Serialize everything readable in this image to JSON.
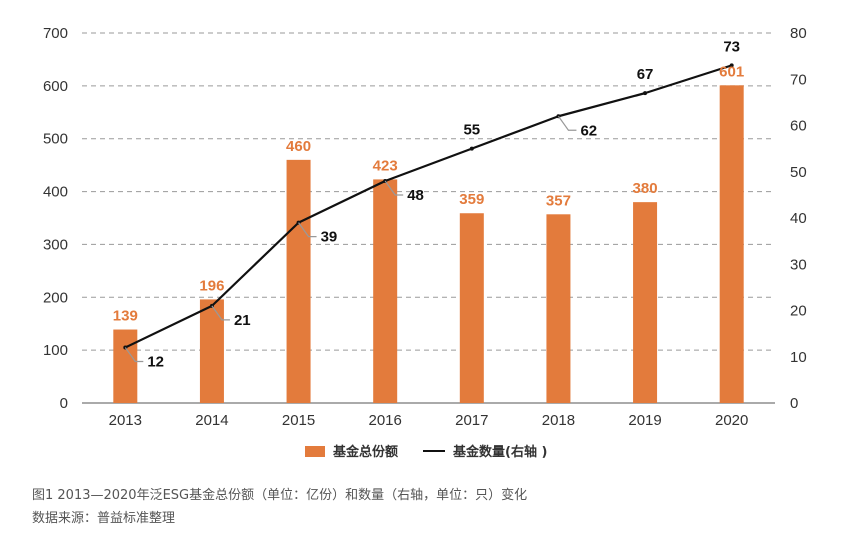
{
  "chart_data": {
    "type": "bar+line",
    "categories": [
      "2013",
      "2014",
      "2015",
      "2016",
      "2017",
      "2018",
      "2019",
      "2020"
    ],
    "series": [
      {
        "name": "基金总份额",
        "type": "bar",
        "axis": "left",
        "color": "#E37B3C",
        "values": [
          139,
          196,
          460,
          423,
          359,
          357,
          380,
          601
        ]
      },
      {
        "name": "基金数量(右轴 )",
        "type": "line",
        "axis": "right",
        "color": "#111111",
        "values": [
          12,
          21,
          39,
          48,
          55,
          62,
          67,
          73
        ]
      }
    ],
    "left_axis": {
      "ylim": [
        0,
        700
      ],
      "ticks": [
        "0",
        "100",
        "200",
        "300",
        "400",
        "500",
        "600",
        "700"
      ]
    },
    "right_axis": {
      "ylim": [
        0,
        80
      ],
      "ticks": [
        "0",
        "10",
        "20",
        "30",
        "40",
        "50",
        "60",
        "70",
        "80"
      ]
    },
    "grid": "dashed horizontal",
    "legend_position": "bottom-center"
  },
  "caption": {
    "line1": "图1  2013—2020年泛ESG基金总份额（单位：亿份）和数量（右轴，单位：只）变化",
    "line2": "数据来源：普益标准整理"
  }
}
